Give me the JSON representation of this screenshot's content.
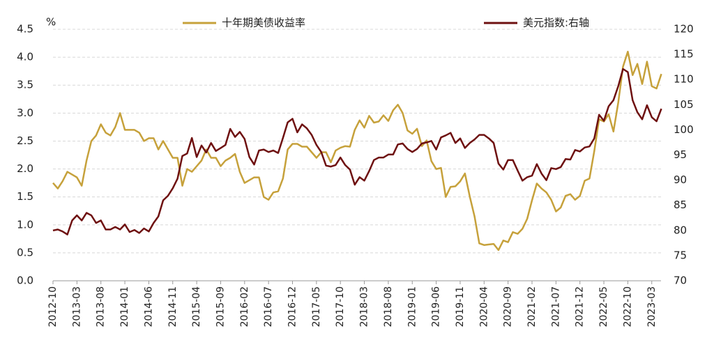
{
  "chart_data": {
    "type": "line",
    "y_label": "%",
    "categories": [
      "2012-10",
      null,
      null,
      null,
      null,
      "2013-03",
      null,
      null,
      null,
      null,
      "2013-08",
      null,
      null,
      null,
      null,
      "2014-01",
      null,
      null,
      null,
      null,
      "2014-06",
      null,
      null,
      null,
      null,
      "2014-11",
      null,
      null,
      null,
      null,
      "2015-04",
      null,
      null,
      null,
      null,
      "2015-09",
      null,
      null,
      null,
      null,
      "2016-02",
      null,
      null,
      null,
      null,
      "2016-07",
      null,
      null,
      null,
      null,
      "2016-12",
      null,
      null,
      null,
      null,
      "2017-05",
      null,
      null,
      null,
      null,
      "2017-10",
      null,
      null,
      null,
      null,
      "2018-03",
      null,
      null,
      null,
      null,
      "2018-08",
      null,
      null,
      null,
      null,
      "2019-01",
      null,
      null,
      null,
      null,
      "2019-06",
      null,
      null,
      null,
      null,
      "2019-11",
      null,
      null,
      null,
      null,
      "2020-04",
      null,
      null,
      null,
      null,
      "2020-09",
      null,
      null,
      null,
      null,
      "2021-02",
      null,
      null,
      null,
      null,
      "2021-07",
      null,
      null,
      null,
      null,
      "2021-12",
      null,
      null,
      null,
      null,
      "2022-05",
      null,
      null,
      null,
      null,
      "2022-10",
      null,
      null,
      null,
      null,
      "2023-03",
      null,
      null
    ],
    "series": [
      {
        "name": "十年期美债收益率",
        "color": "#c6a13b",
        "values": [
          1.75,
          1.65,
          1.78,
          1.95,
          1.9,
          1.85,
          1.7,
          2.15,
          2.5,
          2.6,
          2.8,
          2.65,
          2.6,
          2.75,
          3.0,
          2.7,
          2.7,
          2.7,
          2.65,
          2.5,
          2.55,
          2.55,
          2.35,
          2.5,
          2.35,
          2.2,
          2.2,
          1.7,
          2.0,
          1.95,
          2.05,
          2.15,
          2.35,
          2.2,
          2.2,
          2.05,
          2.15,
          2.2,
          2.27,
          1.95,
          1.75,
          1.8,
          1.85,
          1.85,
          1.5,
          1.45,
          1.58,
          1.6,
          1.83,
          2.35,
          2.45,
          2.45,
          2.4,
          2.4,
          2.3,
          2.2,
          2.3,
          2.3,
          2.12,
          2.33,
          2.38,
          2.41,
          2.4,
          2.7,
          2.87,
          2.74,
          2.95,
          2.83,
          2.85,
          2.96,
          2.86,
          3.05,
          3.15,
          3.0,
          2.69,
          2.63,
          2.72,
          2.41,
          2.51,
          2.14,
          2.0,
          2.02,
          1.5,
          1.68,
          1.69,
          1.78,
          1.92,
          1.51,
          1.15,
          0.67,
          0.64,
          0.65,
          0.66,
          0.55,
          0.72,
          0.69,
          0.87,
          0.84,
          0.93,
          1.11,
          1.44,
          1.74,
          1.65,
          1.58,
          1.45,
          1.24,
          1.31,
          1.52,
          1.55,
          1.45,
          1.52,
          1.79,
          1.83,
          2.32,
          2.89,
          2.85,
          2.98,
          2.67,
          3.19,
          3.83,
          4.1,
          3.68,
          3.88,
          3.52,
          3.92,
          3.48,
          3.44,
          3.7
        ]
      },
      {
        "name": "美元指数:右轴",
        "color": "#6e1010",
        "axis": "y2",
        "values": [
          80,
          80.2,
          79.8,
          79.2,
          82,
          83,
          82,
          83.5,
          83,
          81.5,
          82,
          80.2,
          80.2,
          80.7,
          80.2,
          81.2,
          79.7,
          80.1,
          79.5,
          80.4,
          79.8,
          81.5,
          82.8,
          86,
          86.9,
          88.4,
          90.3,
          94.8,
          95.3,
          98.4,
          94.6,
          96.9,
          95.5,
          97.4,
          95.8,
          96.4,
          97,
          100.2,
          98.6,
          99.6,
          98.2,
          94.6,
          93.1,
          95.9,
          96.1,
          95.6,
          95.9,
          95.4,
          98.4,
          101.5,
          102.2,
          99.5,
          101.1,
          100.3,
          99,
          97,
          95.6,
          92.9,
          92.7,
          93,
          94.5,
          93,
          92.1,
          89.1,
          90.6,
          89.9,
          91.8,
          94,
          94.5,
          94.5,
          95.1,
          95.1,
          97.1,
          97.3,
          96.2,
          95.6,
          96.2,
          97.3,
          97.5,
          97.8,
          96.1,
          98.5,
          98.9,
          99.4,
          97.4,
          98.3,
          96.4,
          97.4,
          98.1,
          99,
          99,
          98.3,
          97.4,
          93.3,
          92.1,
          94,
          94,
          91.9,
          89.9,
          90.6,
          90.9,
          93.2,
          91.3,
          90,
          92.4,
          92.2,
          92.6,
          94.2,
          94.1,
          96,
          95.7,
          96.5,
          96.7,
          98.3,
          103,
          101.8,
          104.7,
          105.9,
          108.7,
          112.1,
          111.5,
          105.9,
          103.5,
          102.1,
          104.9,
          102.5,
          101.7,
          104.2
        ]
      }
    ],
    "ylim": [
      0,
      4.5
    ],
    "yticks": [
      {
        "value": 0,
        "label": "0.0"
      },
      0.5,
      {
        "value": 1,
        "label": "1.0"
      },
      1.5,
      {
        "value": 2,
        "label": "2.0"
      },
      2.5,
      {
        "value": 3,
        "label": "3.0"
      },
      3.5,
      {
        "value": 4,
        "label": "4.0"
      },
      4.5
    ],
    "y2lim": [
      70,
      120
    ],
    "y2ticks": [
      70,
      75,
      80,
      85,
      90,
      95,
      100,
      105,
      110,
      115,
      120
    ],
    "grid": true
  }
}
